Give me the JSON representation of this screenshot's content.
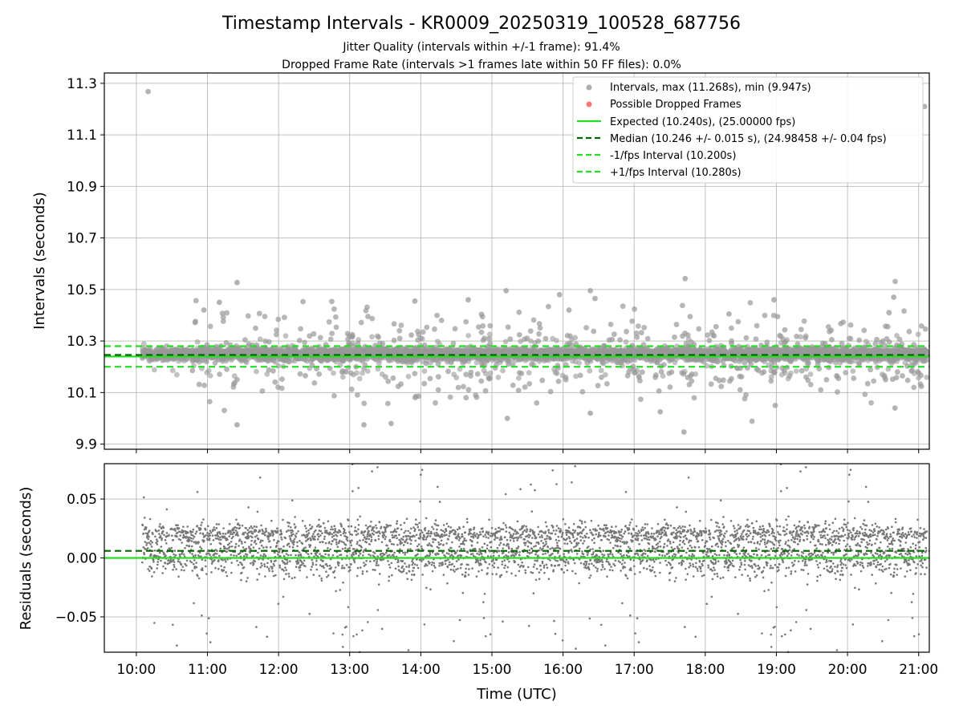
{
  "figure": {
    "title": "Timestamp Intervals - KR0009_20250319_100528_687756",
    "subtitle1": "Jitter Quality (intervals within +/-1 frame): 91.4%",
    "subtitle2": "Dropped Frame Rate (intervals >1 frames late within 50 FF files): 0.0%"
  },
  "chart_data": [
    {
      "type": "scatter",
      "name": "intervals",
      "ylabel": "Intervals (seconds)",
      "xlabel": "",
      "x_range_hours": [
        9.55,
        21.15
      ],
      "ylim": [
        9.88,
        11.34
      ],
      "y_ticks": [
        9.9,
        10.1,
        10.3,
        10.5,
        10.7,
        10.9,
        11.1,
        11.3
      ],
      "y_tick_labels": [
        "9.9",
        "10.1",
        "10.3",
        "10.5",
        "10.7",
        "10.9",
        "11.1",
        "11.3"
      ],
      "grid": true,
      "legend_position": "top-right",
      "reference_lines": [
        {
          "label": "Expected (10.240s), (25.00000 fps)",
          "y": 10.24,
          "color": "#22dd22",
          "style": "solid"
        },
        {
          "label": "Median (10.246 +/- 0.015 s), (24.98458 +/- 0.04 fps)",
          "y": 10.246,
          "color": "#006400",
          "style": "dashed"
        },
        {
          "label": "-1/fps Interval (10.200s)",
          "y": 10.2,
          "color": "#22dd22",
          "style": "dashed"
        },
        {
          "label": "+1/fps Interval (10.280s)",
          "y": 10.28,
          "color": "#22dd22",
          "style": "dashed"
        }
      ],
      "series": [
        {
          "name": "Intervals, max (11.268s), min (9.947s)",
          "color": "#999999",
          "marker": "circle"
        },
        {
          "name": "Possible Dropped Frames",
          "color": "#ff6666",
          "marker": "circle",
          "values": []
        }
      ],
      "points_outliers": [
        {
          "t": "10:10",
          "y": 11.268
        },
        {
          "t": "21:05",
          "y": 11.21
        },
        {
          "t": "17:42",
          "y": 9.947
        },
        {
          "t": "11:25",
          "y": 10.527
        },
        {
          "t": "17:43",
          "y": 10.542
        },
        {
          "t": "15:12",
          "y": 10.495
        },
        {
          "t": "16:23",
          "y": 10.495
        },
        {
          "t": "14:40",
          "y": 10.46
        },
        {
          "t": "18:58",
          "y": 10.46
        },
        {
          "t": "13:55",
          "y": 10.455
        },
        {
          "t": "11:10",
          "y": 10.45
        },
        {
          "t": "10:57",
          "y": 10.42
        },
        {
          "t": "11:25",
          "y": 9.975
        },
        {
          "t": "13:12",
          "y": 9.975
        },
        {
          "t": "13:35",
          "y": 9.98
        },
        {
          "t": "15:13",
          "y": 10.0
        },
        {
          "t": "16:23",
          "y": 10.02
        },
        {
          "t": "17:22",
          "y": 10.025
        },
        {
          "t": "18:59",
          "y": 10.05
        },
        {
          "t": "20:40",
          "y": 10.04
        },
        {
          "t": "20:39",
          "y": 10.47
        },
        {
          "t": "20:35",
          "y": 10.41
        },
        {
          "t": "19:01",
          "y": 10.395
        },
        {
          "t": "18:20",
          "y": 10.405
        },
        {
          "t": "16:05",
          "y": 10.42
        },
        {
          "t": "16:27",
          "y": 10.465
        },
        {
          "t": "15:57",
          "y": 10.48
        }
      ]
    },
    {
      "type": "scatter",
      "name": "residuals",
      "ylabel": "Residuals (seconds)",
      "xlabel": "Time (UTC)",
      "x_range_hours": [
        9.55,
        21.15
      ],
      "ylim": [
        -0.08,
        0.08
      ],
      "y_ticks": [
        -0.05,
        0.0,
        0.05
      ],
      "y_tick_labels": [
        "−0.05",
        "0.00",
        "0.05"
      ],
      "x_ticks": [
        "10:00",
        "11:00",
        "12:00",
        "13:00",
        "14:00",
        "15:00",
        "16:00",
        "17:00",
        "18:00",
        "19:00",
        "20:00",
        "21:00"
      ],
      "grid": true,
      "reference_lines": [
        {
          "y": 0.0,
          "color": "#22dd22",
          "style": "solid"
        },
        {
          "y": 0.006,
          "color": "#006400",
          "style": "dashed"
        }
      ],
      "series": [
        {
          "name": "",
          "color": "#777777",
          "marker": "point"
        }
      ],
      "data_range": {
        "t_start": "10:05",
        "t_end": "21:07",
        "count": 3880,
        "typical_values": [
          0.0,
          0.02
        ],
        "spread": 0.015
      }
    }
  ]
}
